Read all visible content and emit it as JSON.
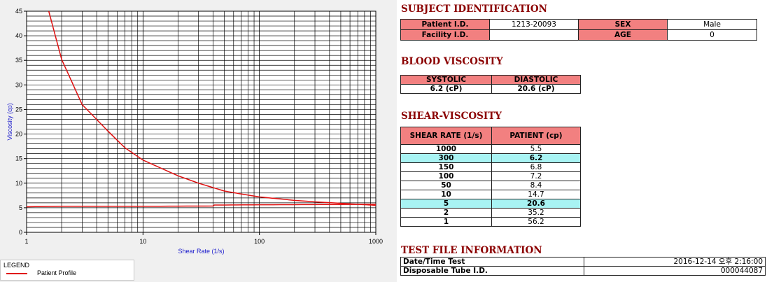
{
  "chart_data": {
    "type": "line",
    "xlabel": "Shear Rate (1/s)",
    "ylabel": "Viscosity (cp)",
    "x_scale": "log",
    "xlim": [
      1,
      1000
    ],
    "ylim": [
      0,
      45
    ],
    "x_ticks": [
      "1",
      "10",
      "100",
      "1000"
    ],
    "y_ticks": [
      "0",
      "5",
      "10",
      "15",
      "20",
      "25",
      "30",
      "35",
      "40",
      "45"
    ],
    "grid": true,
    "series": [
      {
        "name": "Patient Profile",
        "color": "#e01010",
        "x": [
          1.55,
          2,
          3,
          5,
          7,
          10,
          20,
          30,
          50,
          70,
          100,
          150,
          200,
          300,
          500,
          700,
          1000
        ],
        "y": [
          45,
          35.2,
          26,
          20.6,
          17.2,
          14.7,
          11.5,
          10,
          8.4,
          7.8,
          7.2,
          6.8,
          6.5,
          6.2,
          5.9,
          5.7,
          5.5
        ]
      },
      {
        "name": "",
        "color": "#e01010",
        "x": [
          1,
          2,
          5,
          10,
          40,
          41,
          100,
          300,
          1000
        ],
        "y": [
          5.2,
          5.3,
          5.3,
          5.3,
          5.35,
          5.55,
          5.6,
          5.65,
          5.7
        ]
      }
    ]
  },
  "legend": {
    "title": "LEGEND",
    "label": "Patient Profile"
  },
  "subject": {
    "title": "SUBJECT IDENTIFICATION",
    "patient_id_label": "Patient I.D.",
    "patient_id": "1213-20093",
    "facility_id_label": "Facility I.D.",
    "facility_id": "",
    "sex_label": "SEX",
    "sex": "Male",
    "age_label": "AGE",
    "age": "0"
  },
  "blood": {
    "title": "BLOOD VISCOSITY",
    "systolic_label": "SYSTOLIC",
    "diastolic_label": "DIASTOLIC",
    "systolic": "6.2 (cP)",
    "diastolic": "20.6 (cP)"
  },
  "shear": {
    "title": "SHEAR-VISCOSITY",
    "col_rate": "SHEAR RATE (1/s)",
    "col_patient": "PATIENT (cp)",
    "rows": [
      {
        "rate": "1000",
        "patient": "5.5",
        "highlight": false
      },
      {
        "rate": "300",
        "patient": "6.2",
        "highlight": true
      },
      {
        "rate": "150",
        "patient": "6.8",
        "highlight": false
      },
      {
        "rate": "100",
        "patient": "7.2",
        "highlight": false
      },
      {
        "rate": "50",
        "patient": "8.4",
        "highlight": false
      },
      {
        "rate": "10",
        "patient": "14.7",
        "highlight": false
      },
      {
        "rate": "5",
        "patient": "20.6",
        "highlight": true
      },
      {
        "rate": "2",
        "patient": "35.2",
        "highlight": false
      },
      {
        "rate": "1",
        "patient": "56.2",
        "highlight": false
      }
    ]
  },
  "file": {
    "title": "TEST FILE INFORMATION",
    "datetime_label": "Date/Time Test",
    "datetime": "2016-12-14  오후 2:16:00",
    "tube_label": "Disposable Tube I.D.",
    "tube": "000044087"
  }
}
